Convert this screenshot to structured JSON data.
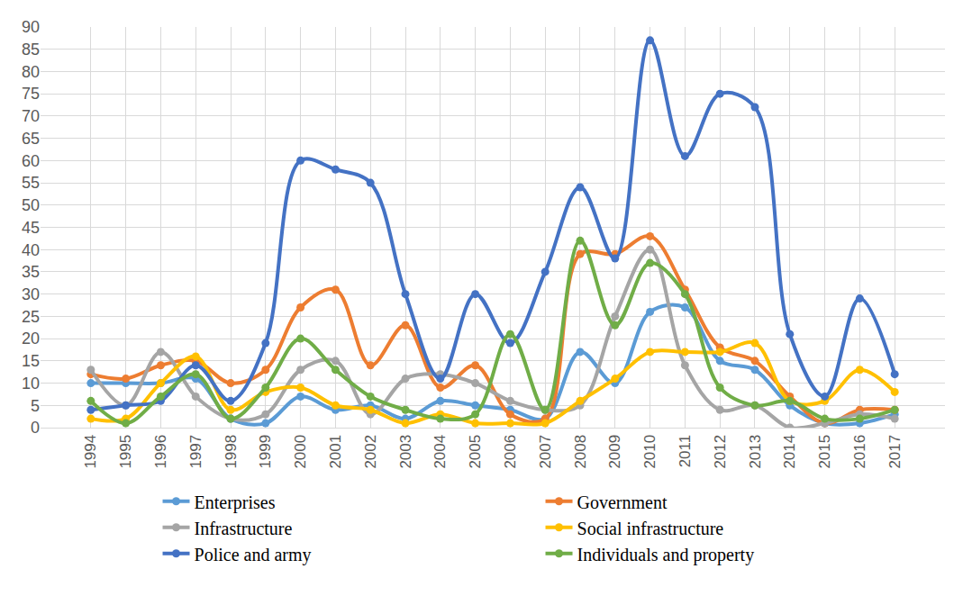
{
  "chart_data": {
    "type": "line",
    "categories": [
      "1994",
      "1995",
      "1996",
      "1997",
      "1998",
      "1999",
      "2000",
      "2001",
      "2002",
      "2003",
      "2004",
      "2005",
      "2006",
      "2007",
      "2008",
      "2009",
      "2010",
      "2011",
      "2012",
      "2013",
      "2014",
      "2015",
      "2016",
      "2017"
    ],
    "series": [
      {
        "name": "Enterprises",
        "color": "#5B9BD5",
        "values": [
          10,
          10,
          10,
          11,
          2,
          1,
          7,
          4,
          5,
          2,
          6,
          5,
          4,
          2,
          17,
          10,
          26,
          27,
          15,
          13,
          5,
          1,
          1,
          3
        ]
      },
      {
        "name": "Government",
        "color": "#ED7D31",
        "values": [
          12,
          11,
          14,
          15,
          10,
          13,
          27,
          31,
          14,
          23,
          9,
          14,
          3,
          2,
          39,
          39,
          43,
          31,
          18,
          15,
          7,
          1,
          4,
          4
        ]
      },
      {
        "name": "Infrastructure",
        "color": "#A5A5A5",
        "values": [
          13,
          5,
          17,
          7,
          2,
          3,
          13,
          15,
          3,
          11,
          12,
          10,
          6,
          4,
          5,
          25,
          40,
          14,
          4,
          5,
          0,
          1,
          3,
          2
        ]
      },
      {
        "name": "Social infrastructure",
        "color": "#FFC000",
        "values": [
          2,
          2,
          10,
          16,
          4,
          8,
          9,
          5,
          4,
          1,
          3,
          1,
          1,
          1,
          6,
          11,
          17,
          17,
          17,
          19,
          6,
          6,
          13,
          8
        ]
      },
      {
        "name": "Police and army",
        "color": "#4472C4",
        "values": [
          4,
          5,
          6,
          14,
          6,
          19,
          60,
          58,
          55,
          30,
          11,
          30,
          19,
          35,
          54,
          38,
          87,
          61,
          75,
          72,
          21,
          7,
          29,
          12
        ]
      },
      {
        "name": "Individuals and property",
        "color": "#70AD47",
        "values": [
          6,
          1,
          7,
          12,
          2,
          9,
          20,
          13,
          7,
          4,
          2,
          3,
          21,
          4,
          42,
          23,
          37,
          30,
          9,
          5,
          6,
          2,
          2,
          4
        ]
      }
    ],
    "ylim": [
      0,
      90
    ],
    "yticks": [
      0,
      5,
      10,
      15,
      20,
      25,
      30,
      35,
      40,
      45,
      50,
      55,
      60,
      65,
      70,
      75,
      80,
      85,
      90
    ],
    "grid": true,
    "legend": "bottom",
    "marker": "circle",
    "line_style": "spline"
  }
}
